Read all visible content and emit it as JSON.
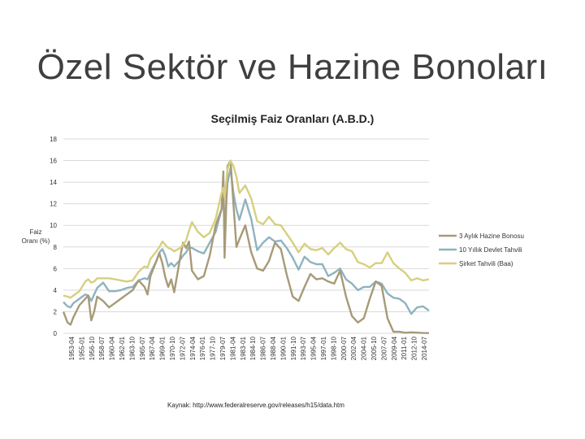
{
  "slide": {
    "title": "Özel Sektör ve Hazine Bonoları"
  },
  "source": "Kaynak: http://www.federalreserve.gov/releases/h15/data.htm",
  "colors": {
    "tbill": "#a79a78",
    "treasury10": "#8fb3bf",
    "baa": "#d6d07e",
    "grid": "#d9d9d9"
  },
  "chart_data": {
    "type": "line",
    "title": "Seçilmiş Faiz Oranları (A.B.D.)",
    "ylabel": "Faiz Oranı (%)",
    "ylim": [
      0,
      18
    ],
    "yticks": [
      0,
      2,
      4,
      6,
      8,
      10,
      12,
      14,
      16,
      18
    ],
    "grid": true,
    "legend_position": "right",
    "x_tick_labels": [
      "1953-04",
      "1955-01",
      "1956-10",
      "1958-07",
      "1960-04",
      "1962-01",
      "1963-10",
      "1965-07",
      "1967-04",
      "1969-01",
      "1970-10",
      "1972-07",
      "1974-04",
      "1976-01",
      "1977-10",
      "1979-07",
      "1981-04",
      "1983-01",
      "1984-10",
      "1986-07",
      "1988-04",
      "1990-01",
      "1991-10",
      "1993-07",
      "1995-04",
      "1997-01",
      "1998-10",
      "2000-07",
      "2002-04",
      "2004-01",
      "2005-10",
      "2007-07",
      "2009-04",
      "2011-01",
      "2012-10",
      "2014-07"
    ],
    "x": [
      1953.3,
      1954.0,
      1954.5,
      1955.0,
      1956.0,
      1957.0,
      1957.5,
      1958.0,
      1958.5,
      1959.0,
      1960.0,
      1961.0,
      1962.0,
      1963.0,
      1964.0,
      1965.0,
      1966.0,
      1967.0,
      1967.5,
      1968.0,
      1969.0,
      1969.5,
      1970.0,
      1970.5,
      1971.0,
      1971.5,
      1972.0,
      1973.0,
      1973.5,
      1974.0,
      1974.5,
      1975.0,
      1976.0,
      1977.0,
      1978.0,
      1979.0,
      1980.0,
      1980.3,
      1980.5,
      1981.0,
      1981.5,
      1982.0,
      1982.5,
      1983.0,
      1984.0,
      1985.0,
      1986.0,
      1987.0,
      1988.0,
      1989.0,
      1990.0,
      1991.0,
      1992.0,
      1993.0,
      1994.0,
      1995.0,
      1996.0,
      1997.0,
      1998.0,
      1999.0,
      2000.0,
      2001.0,
      2002.0,
      2003.0,
      2004.0,
      2005.0,
      2006.0,
      2007.0,
      2008.0,
      2009.0,
      2010.0,
      2011.0,
      2012.0,
      2013.0,
      2014.0,
      2015.0
    ],
    "series": [
      {
        "name": "3 Aylık Hazine Bonosu",
        "values": [
          2.0,
          1.0,
          0.8,
          1.5,
          2.6,
          3.2,
          3.5,
          1.2,
          2.0,
          3.4,
          3.0,
          2.4,
          2.8,
          3.2,
          3.6,
          4.0,
          4.9,
          4.3,
          3.6,
          5.3,
          6.7,
          7.4,
          6.5,
          5.2,
          4.3,
          5.0,
          3.8,
          7.0,
          8.4,
          7.9,
          8.5,
          5.8,
          5.0,
          5.3,
          7.2,
          10.0,
          11.5,
          15.0,
          7.0,
          15.5,
          16.0,
          12.0,
          8.0,
          8.7,
          10.0,
          7.5,
          6.0,
          5.8,
          6.7,
          8.4,
          7.8,
          5.4,
          3.4,
          3.0,
          4.3,
          5.5,
          5.0,
          5.1,
          4.8,
          4.6,
          5.8,
          3.4,
          1.6,
          1.0,
          1.4,
          3.2,
          4.8,
          4.4,
          1.4,
          0.15,
          0.14,
          0.05,
          0.09,
          0.06,
          0.03,
          0.02
        ]
      },
      {
        "name": "10 Yıllık Devlet Tahvili",
        "values": [
          2.9,
          2.5,
          2.4,
          2.8,
          3.2,
          3.6,
          3.5,
          3.0,
          3.6,
          4.2,
          4.7,
          3.9,
          3.9,
          4.0,
          4.2,
          4.3,
          4.9,
          5.1,
          5.0,
          5.6,
          6.7,
          7.5,
          7.8,
          7.2,
          6.2,
          6.5,
          6.2,
          6.8,
          7.2,
          7.5,
          8.0,
          7.9,
          7.6,
          7.4,
          8.4,
          9.4,
          11.5,
          12.2,
          10.0,
          13.9,
          15.3,
          13.0,
          11.5,
          10.5,
          12.4,
          10.6,
          7.7,
          8.4,
          8.9,
          8.5,
          8.6,
          7.9,
          7.0,
          5.9,
          7.1,
          6.6,
          6.4,
          6.4,
          5.3,
          5.6,
          6.0,
          5.0,
          4.6,
          4.0,
          4.3,
          4.3,
          4.8,
          4.6,
          3.7,
          3.3,
          3.2,
          2.8,
          1.8,
          2.4,
          2.5,
          2.1
        ]
      },
      {
        "name": "Şirket Tahvili (Baa)",
        "values": [
          3.5,
          3.4,
          3.3,
          3.5,
          3.9,
          4.8,
          5.0,
          4.7,
          4.8,
          5.1,
          5.1,
          5.1,
          5.0,
          4.9,
          4.8,
          4.9,
          5.7,
          6.2,
          6.1,
          6.9,
          7.6,
          8.0,
          8.5,
          8.2,
          7.9,
          7.8,
          7.6,
          7.9,
          8.2,
          8.6,
          9.5,
          10.3,
          9.4,
          8.9,
          9.3,
          10.6,
          13.0,
          13.5,
          12.6,
          15.2,
          16.0,
          15.5,
          14.5,
          13.0,
          13.7,
          12.5,
          10.4,
          10.1,
          10.8,
          10.1,
          10.0,
          9.2,
          8.4,
          7.5,
          8.3,
          7.8,
          7.7,
          7.9,
          7.3,
          7.9,
          8.4,
          7.8,
          7.6,
          6.6,
          6.4,
          6.1,
          6.5,
          6.5,
          7.5,
          6.5,
          6.0,
          5.6,
          4.9,
          5.1,
          4.9,
          5.0
        ]
      }
    ]
  }
}
